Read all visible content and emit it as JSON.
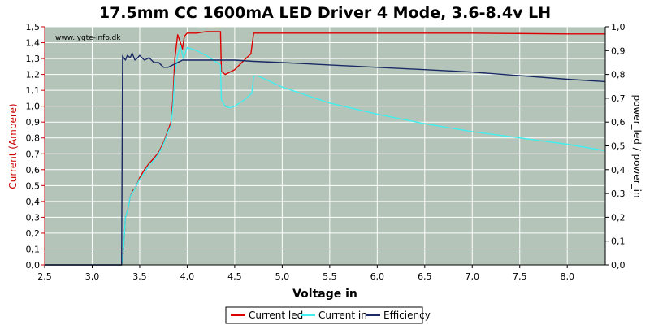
{
  "chart_data": {
    "type": "line",
    "title": "17.5mm CC 1600mA LED Driver 4 Mode, 3.6-8.4v LH",
    "watermark": "www.lygte-info.dk",
    "xlabel": "Voltage in",
    "ylabel_left": "Current (Ampere)",
    "ylabel_right": "power_led / power_in",
    "xlim": [
      2.5,
      8.4
    ],
    "ylim_left": [
      0,
      1.5
    ],
    "ylim_right": [
      0,
      1.0
    ],
    "x_ticks": [
      "2,5",
      "3,0",
      "3,5",
      "4,0",
      "4,5",
      "5,0",
      "5,5",
      "6,0",
      "6,5",
      "7,0",
      "7,5",
      "8,0"
    ],
    "x_tick_values": [
      2.5,
      3.0,
      3.5,
      4.0,
      4.5,
      5.0,
      5.5,
      6.0,
      6.5,
      7.0,
      7.5,
      8.0
    ],
    "y_left_ticks": [
      "0,0",
      "0,1",
      "0,2",
      "0,3",
      "0,4",
      "0,5",
      "0,6",
      "0,7",
      "0,8",
      "0,9",
      "1,0",
      "1,1",
      "1,2",
      "1,3",
      "1,4",
      "1,5"
    ],
    "y_left_tick_values": [
      0,
      0.1,
      0.2,
      0.3,
      0.4,
      0.5,
      0.6,
      0.7,
      0.8,
      0.9,
      1.0,
      1.1,
      1.2,
      1.3,
      1.4,
      1.5
    ],
    "y_right_ticks": [
      "0,0",
      "0,1",
      "0,2",
      "0,3",
      "0,4",
      "0,5",
      "0,6",
      "0,7",
      "0,8",
      "0,9",
      "1,0"
    ],
    "y_right_tick_values": [
      0,
      0.1,
      0.2,
      0.3,
      0.4,
      0.5,
      0.6,
      0.7,
      0.8,
      0.9,
      1.0
    ],
    "grid": true,
    "legend_position": "bottom-center",
    "colors": {
      "plot_background": "#b4c4b8",
      "grid": "#ffffff",
      "left_axis": "#cc0000",
      "right_axis": "#000000"
    },
    "series": [
      {
        "name": "Current led",
        "axis": "left",
        "color": "#dd0000",
        "points": [
          [
            2.5,
            0.0
          ],
          [
            3.31,
            0.0
          ],
          [
            3.33,
            0.1
          ],
          [
            3.35,
            0.3
          ],
          [
            3.38,
            0.36
          ],
          [
            3.4,
            0.43
          ],
          [
            3.43,
            0.47
          ],
          [
            3.45,
            0.48
          ],
          [
            3.48,
            0.52
          ],
          [
            3.5,
            0.55
          ],
          [
            3.55,
            0.6
          ],
          [
            3.6,
            0.64
          ],
          [
            3.63,
            0.66
          ],
          [
            3.66,
            0.68
          ],
          [
            3.7,
            0.71
          ],
          [
            3.75,
            0.77
          ],
          [
            3.8,
            0.85
          ],
          [
            3.83,
            0.9
          ],
          [
            3.85,
            1.05
          ],
          [
            3.87,
            1.3
          ],
          [
            3.9,
            1.45
          ],
          [
            3.93,
            1.4
          ],
          [
            3.95,
            1.36
          ],
          [
            3.97,
            1.44
          ],
          [
            4.0,
            1.46
          ],
          [
            4.1,
            1.46
          ],
          [
            4.2,
            1.47
          ],
          [
            4.35,
            1.47
          ],
          [
            4.36,
            1.22
          ],
          [
            4.4,
            1.2
          ],
          [
            4.5,
            1.23
          ],
          [
            4.6,
            1.29
          ],
          [
            4.67,
            1.33
          ],
          [
            4.7,
            1.46
          ],
          [
            5.0,
            1.46
          ],
          [
            6.0,
            1.46
          ],
          [
            7.0,
            1.46
          ],
          [
            8.0,
            1.455
          ],
          [
            8.4,
            1.455
          ]
        ]
      },
      {
        "name": "Current in",
        "axis": "left",
        "color": "#40eeee",
        "points": [
          [
            2.5,
            0.0
          ],
          [
            3.31,
            0.0
          ],
          [
            3.33,
            0.1
          ],
          [
            3.35,
            0.3
          ],
          [
            3.38,
            0.36
          ],
          [
            3.4,
            0.43
          ],
          [
            3.45,
            0.48
          ],
          [
            3.5,
            0.54
          ],
          [
            3.55,
            0.58
          ],
          [
            3.6,
            0.63
          ],
          [
            3.65,
            0.66
          ],
          [
            3.7,
            0.7
          ],
          [
            3.75,
            0.76
          ],
          [
            3.8,
            0.84
          ],
          [
            3.83,
            0.88
          ],
          [
            3.85,
            1.0
          ],
          [
            3.87,
            1.2
          ],
          [
            3.9,
            1.32
          ],
          [
            3.93,
            1.38
          ],
          [
            3.96,
            1.3
          ],
          [
            4.0,
            1.37
          ],
          [
            4.05,
            1.36
          ],
          [
            4.1,
            1.35
          ],
          [
            4.2,
            1.32
          ],
          [
            4.3,
            1.28
          ],
          [
            4.35,
            1.26
          ],
          [
            4.36,
            1.04
          ],
          [
            4.4,
            1.0
          ],
          [
            4.45,
            0.99
          ],
          [
            4.5,
            1.0
          ],
          [
            4.6,
            1.04
          ],
          [
            4.68,
            1.08
          ],
          [
            4.7,
            1.19
          ],
          [
            4.75,
            1.19
          ],
          [
            5.0,
            1.12
          ],
          [
            5.5,
            1.02
          ],
          [
            6.0,
            0.95
          ],
          [
            6.5,
            0.89
          ],
          [
            7.0,
            0.84
          ],
          [
            7.5,
            0.8
          ],
          [
            8.0,
            0.76
          ],
          [
            8.4,
            0.72
          ]
        ]
      },
      {
        "name": "Efficiency",
        "axis": "right",
        "color": "#1a2a66",
        "points": [
          [
            2.5,
            0.0
          ],
          [
            3.31,
            0.0
          ],
          [
            3.32,
            0.88
          ],
          [
            3.33,
            0.87
          ],
          [
            3.35,
            0.86
          ],
          [
            3.37,
            0.88
          ],
          [
            3.4,
            0.87
          ],
          [
            3.42,
            0.89
          ],
          [
            3.45,
            0.86
          ],
          [
            3.48,
            0.87
          ],
          [
            3.5,
            0.88
          ],
          [
            3.55,
            0.86
          ],
          [
            3.6,
            0.87
          ],
          [
            3.65,
            0.85
          ],
          [
            3.7,
            0.85
          ],
          [
            3.75,
            0.83
          ],
          [
            3.8,
            0.83
          ],
          [
            3.85,
            0.84
          ],
          [
            3.9,
            0.85
          ],
          [
            3.95,
            0.86
          ],
          [
            4.0,
            0.86
          ],
          [
            4.2,
            0.86
          ],
          [
            4.5,
            0.86
          ],
          [
            4.7,
            0.855
          ],
          [
            5.0,
            0.85
          ],
          [
            5.5,
            0.84
          ],
          [
            6.0,
            0.83
          ],
          [
            6.5,
            0.82
          ],
          [
            7.0,
            0.81
          ],
          [
            7.5,
            0.795
          ],
          [
            8.0,
            0.78
          ],
          [
            8.4,
            0.77
          ]
        ]
      }
    ]
  }
}
